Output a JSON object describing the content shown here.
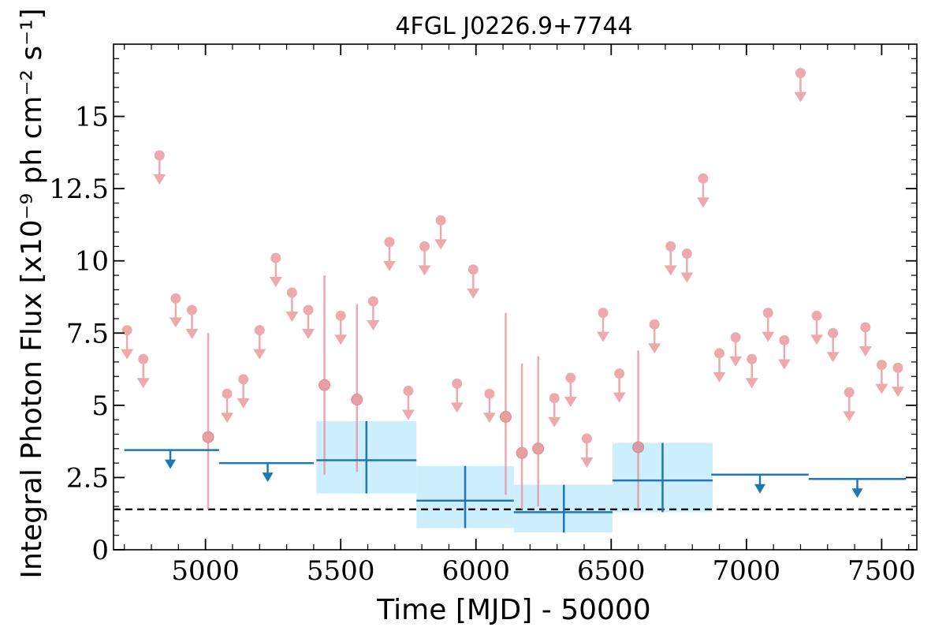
{
  "chart_data": {
    "type": "scatter",
    "title": "4FGL J0226.9+7744",
    "xlabel": "Time [MJD] - 50000",
    "ylabel": "Integral Photon Flux [x10⁻⁹ ph cm⁻² s⁻¹]",
    "xlim": [
      4660,
      7630
    ],
    "ylim": [
      0,
      17.5
    ],
    "x_ticks": [
      5000,
      5500,
      6000,
      6500,
      7000,
      7500
    ],
    "y_ticks": [
      0,
      2.5,
      5,
      7.5,
      10,
      12.5,
      15
    ],
    "y_tick_labels": [
      "0",
      "2.5",
      "5",
      "7.5",
      "10",
      "12.5",
      "15"
    ],
    "reference_line": {
      "y": 1.4,
      "style": "dashed",
      "color": "#000000"
    },
    "colors": {
      "short_bins": "#e8898f",
      "long_bins": "#1f77b4",
      "band": "#cdeefc"
    },
    "series": [
      {
        "kind": "short-bin-upper-limits",
        "points": [
          {
            "x": 4710,
            "y": 7.6
          },
          {
            "x": 4770,
            "y": 6.6
          },
          {
            "x": 4830,
            "y": 13.65
          },
          {
            "x": 4890,
            "y": 8.7
          },
          {
            "x": 4950,
            "y": 8.3
          },
          {
            "x": 5080,
            "y": 5.4
          },
          {
            "x": 5140,
            "y": 5.9
          },
          {
            "x": 5200,
            "y": 7.6
          },
          {
            "x": 5260,
            "y": 10.1
          },
          {
            "x": 5320,
            "y": 8.9
          },
          {
            "x": 5380,
            "y": 8.3
          },
          {
            "x": 5500,
            "y": 8.1
          },
          {
            "x": 5620,
            "y": 8.6
          },
          {
            "x": 5680,
            "y": 10.65
          },
          {
            "x": 5750,
            "y": 5.5
          },
          {
            "x": 5810,
            "y": 10.5
          },
          {
            "x": 5870,
            "y": 11.4
          },
          {
            "x": 5930,
            "y": 5.75
          },
          {
            "x": 5990,
            "y": 9.7
          },
          {
            "x": 6050,
            "y": 5.4
          },
          {
            "x": 6290,
            "y": 5.25
          },
          {
            "x": 6350,
            "y": 5.95
          },
          {
            "x": 6410,
            "y": 3.85
          },
          {
            "x": 6470,
            "y": 8.2
          },
          {
            "x": 6530,
            "y": 6.1
          },
          {
            "x": 6660,
            "y": 7.8
          },
          {
            "x": 6720,
            "y": 10.5
          },
          {
            "x": 6780,
            "y": 10.25
          },
          {
            "x": 6840,
            "y": 12.85
          },
          {
            "x": 6900,
            "y": 6.8
          },
          {
            "x": 6960,
            "y": 7.35
          },
          {
            "x": 7020,
            "y": 6.6
          },
          {
            "x": 7080,
            "y": 8.2
          },
          {
            "x": 7140,
            "y": 7.25
          },
          {
            "x": 7200,
            "y": 16.5
          },
          {
            "x": 7260,
            "y": 8.1
          },
          {
            "x": 7320,
            "y": 7.5
          },
          {
            "x": 7380,
            "y": 5.45
          },
          {
            "x": 7440,
            "y": 7.7
          },
          {
            "x": 7500,
            "y": 6.4
          },
          {
            "x": 7560,
            "y": 6.3
          }
        ]
      },
      {
        "kind": "short-bin-detections",
        "points": [
          {
            "x": 5010,
            "y": 3.9,
            "lo": 1.4,
            "hi": 7.5
          },
          {
            "x": 5440,
            "y": 5.7,
            "lo": 2.6,
            "hi": 9.5
          },
          {
            "x": 5560,
            "y": 5.2,
            "lo": 2.7,
            "hi": 8.5
          },
          {
            "x": 6110,
            "y": 4.6,
            "lo": 1.9,
            "hi": 8.2
          },
          {
            "x": 6170,
            "y": 3.35,
            "lo": 1.4,
            "hi": 6.45
          },
          {
            "x": 6230,
            "y": 3.5,
            "lo": 1.5,
            "hi": 6.7
          },
          {
            "x": 6600,
            "y": 3.55,
            "lo": 1.4,
            "hi": 6.9
          }
        ]
      },
      {
        "kind": "long-bin-upper-limits",
        "bins": [
          {
            "x0": 4700,
            "x1": 5050,
            "x": 4870,
            "y": 3.45
          },
          {
            "x0": 5050,
            "x1": 5400,
            "x": 5230,
            "y": 3.0
          },
          {
            "x0": 6870,
            "x1": 7230,
            "x": 7050,
            "y": 2.6
          },
          {
            "x0": 7230,
            "x1": 7590,
            "x": 7410,
            "y": 2.45
          }
        ]
      },
      {
        "kind": "long-bin-detections",
        "bins": [
          {
            "x0": 5410,
            "x1": 5780,
            "x": 5595,
            "y": 3.1,
            "lo": 1.95,
            "hi": 4.45
          },
          {
            "x0": 5780,
            "x1": 6140,
            "x": 5960,
            "y": 1.7,
            "lo": 0.75,
            "hi": 2.9
          },
          {
            "x0": 6140,
            "x1": 6505,
            "x": 6325,
            "y": 1.3,
            "lo": 0.6,
            "hi": 2.25
          },
          {
            "x0": 6505,
            "x1": 6875,
            "x": 6690,
            "y": 2.4,
            "lo": 1.3,
            "hi": 3.7
          }
        ]
      }
    ]
  }
}
